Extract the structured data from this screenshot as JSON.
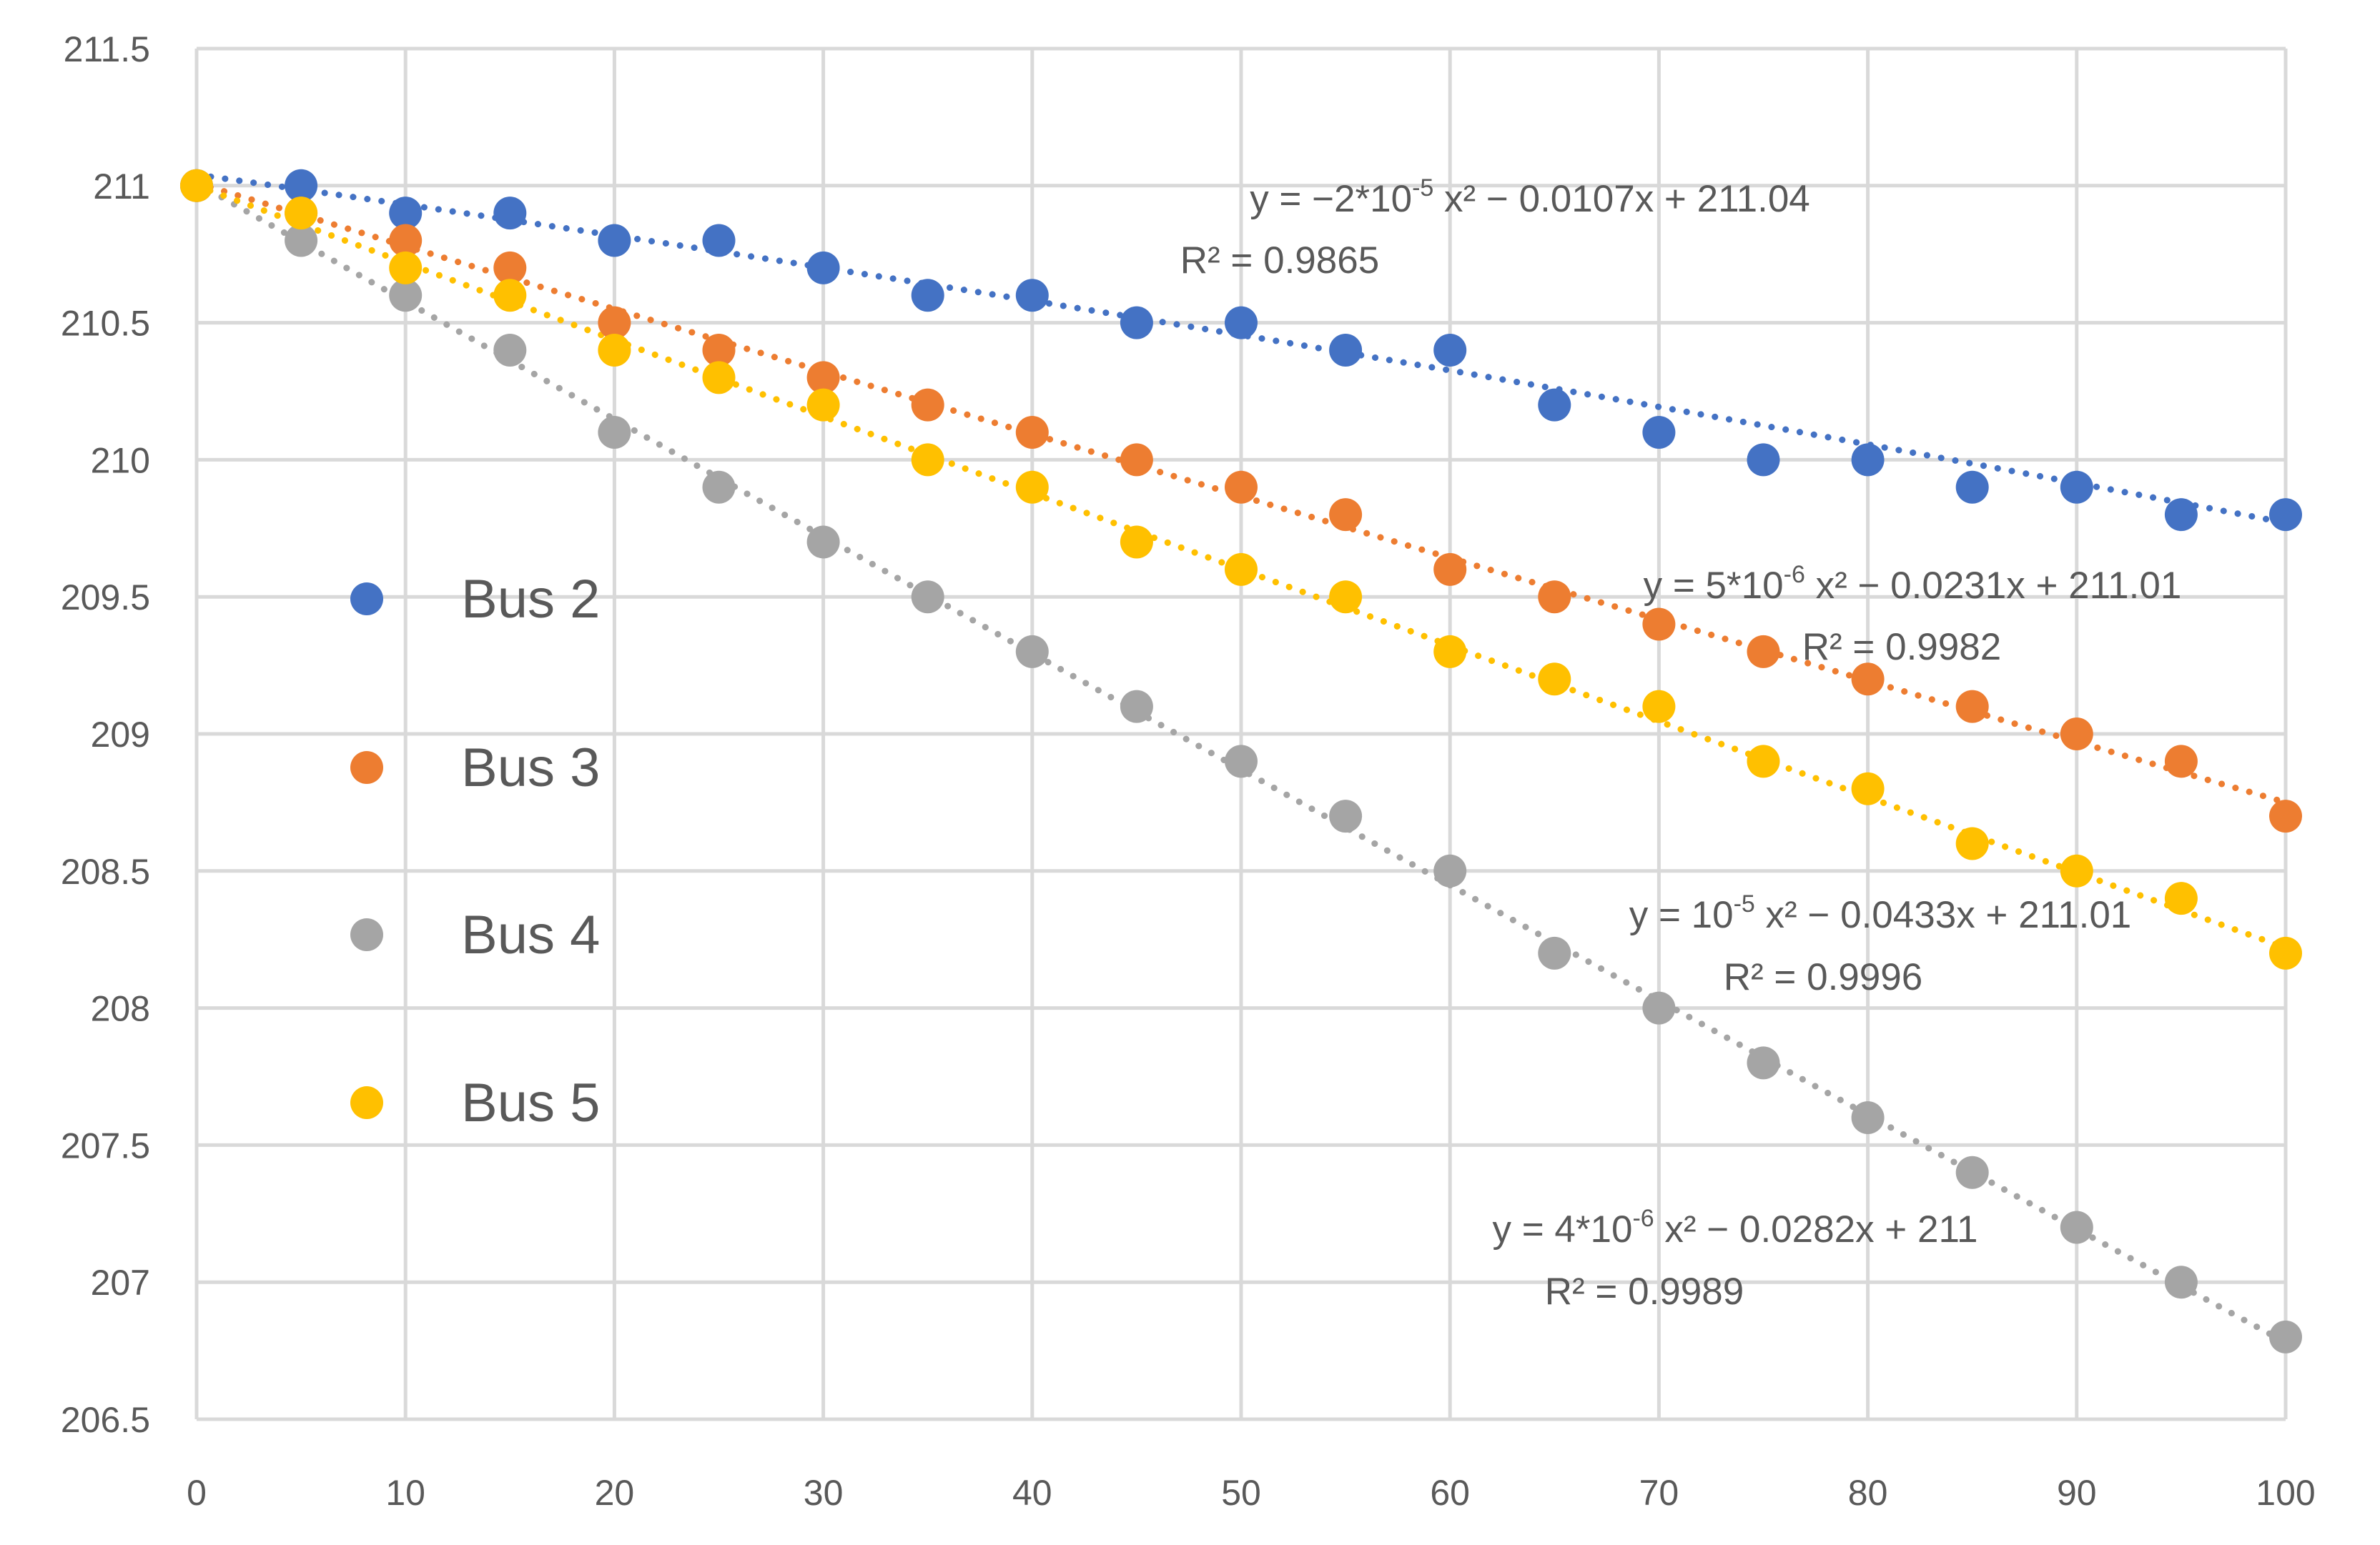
{
  "chart_data": {
    "type": "scatter",
    "title": "",
    "xlabel": "",
    "ylabel": "",
    "xlim": [
      0,
      100
    ],
    "ylim": [
      206.5,
      211.5
    ],
    "x_ticks": [
      "0",
      "10",
      "20",
      "30",
      "40",
      "50",
      "60",
      "70",
      "80",
      "90",
      "100"
    ],
    "y_ticks": [
      "206.5",
      "207",
      "207.5",
      "208",
      "208.5",
      "209",
      "209.5",
      "210",
      "210.5",
      "211",
      "211.5"
    ],
    "grid": true,
    "legend_position": "left",
    "x": [
      0,
      5,
      10,
      15,
      20,
      25,
      30,
      35,
      40,
      45,
      50,
      55,
      60,
      65,
      70,
      75,
      80,
      85,
      90,
      95,
      100
    ],
    "series": [
      {
        "name": "Bus 2",
        "color": "#4472C4",
        "values": [
          211.0,
          211.0,
          210.9,
          210.9,
          210.8,
          210.8,
          210.7,
          210.6,
          210.6,
          210.5,
          210.5,
          210.4,
          210.4,
          210.2,
          210.1,
          210.0,
          210.0,
          209.9,
          209.9,
          209.8,
          209.8
        ],
        "trendline": {
          "type": "polynomial",
          "coefficients": [
            -2e-05,
            -0.0107,
            211.04
          ],
          "equation": "y = −2*10",
          "equation_exp": "-5",
          "equation_rest": " x² − 0.0107x + 211.04",
          "r2": "R² = 0.9865"
        }
      },
      {
        "name": "Bus 3",
        "color": "#ED7D31",
        "values": [
          211.0,
          210.9,
          210.8,
          210.7,
          210.5,
          210.4,
          210.3,
          210.2,
          210.1,
          210.0,
          209.9,
          209.8,
          209.6,
          209.5,
          209.4,
          209.3,
          209.2,
          209.1,
          209.0,
          208.9,
          208.7
        ],
        "trendline": {
          "type": "polynomial",
          "coefficients": [
            5e-06,
            -0.0231,
            211.01
          ],
          "equation": "y = 5*10",
          "equation_exp": "-6",
          "equation_rest": " x² − 0.0231x + 211.01",
          "r2": "R² = 0.9982"
        }
      },
      {
        "name": "Bus 4",
        "color": "#A5A5A5",
        "values": [
          211.0,
          210.8,
          210.6,
          210.4,
          210.1,
          209.9,
          209.7,
          209.5,
          209.3,
          209.1,
          208.9,
          208.7,
          208.5,
          208.2,
          208.0,
          207.8,
          207.6,
          207.4,
          207.2,
          207.0,
          206.8
        ],
        "trendline": {
          "type": "polynomial",
          "coefficients": [
            1e-05,
            -0.0433,
            211.01
          ],
          "equation": "y = 10",
          "equation_exp": "-5",
          "equation_rest": " x² − 0.0433x + 211.01",
          "r2": "R² = 0.9996"
        }
      },
      {
        "name": "Bus 5",
        "color": "#FFC000",
        "values": [
          211.0,
          210.9,
          210.7,
          210.6,
          210.4,
          210.3,
          210.2,
          210.0,
          209.9,
          209.7,
          209.6,
          209.5,
          209.3,
          209.2,
          209.1,
          208.9,
          208.8,
          208.6,
          208.5,
          208.4,
          208.2
        ],
        "trendline": {
          "type": "polynomial",
          "coefficients": [
            4e-06,
            -0.0282,
            211.0
          ],
          "equation": "y = 4*10",
          "equation_exp": "-6",
          "equation_rest": " x² − 0.0282x + 211",
          "r2": "R² = 0.9989"
        }
      }
    ]
  }
}
